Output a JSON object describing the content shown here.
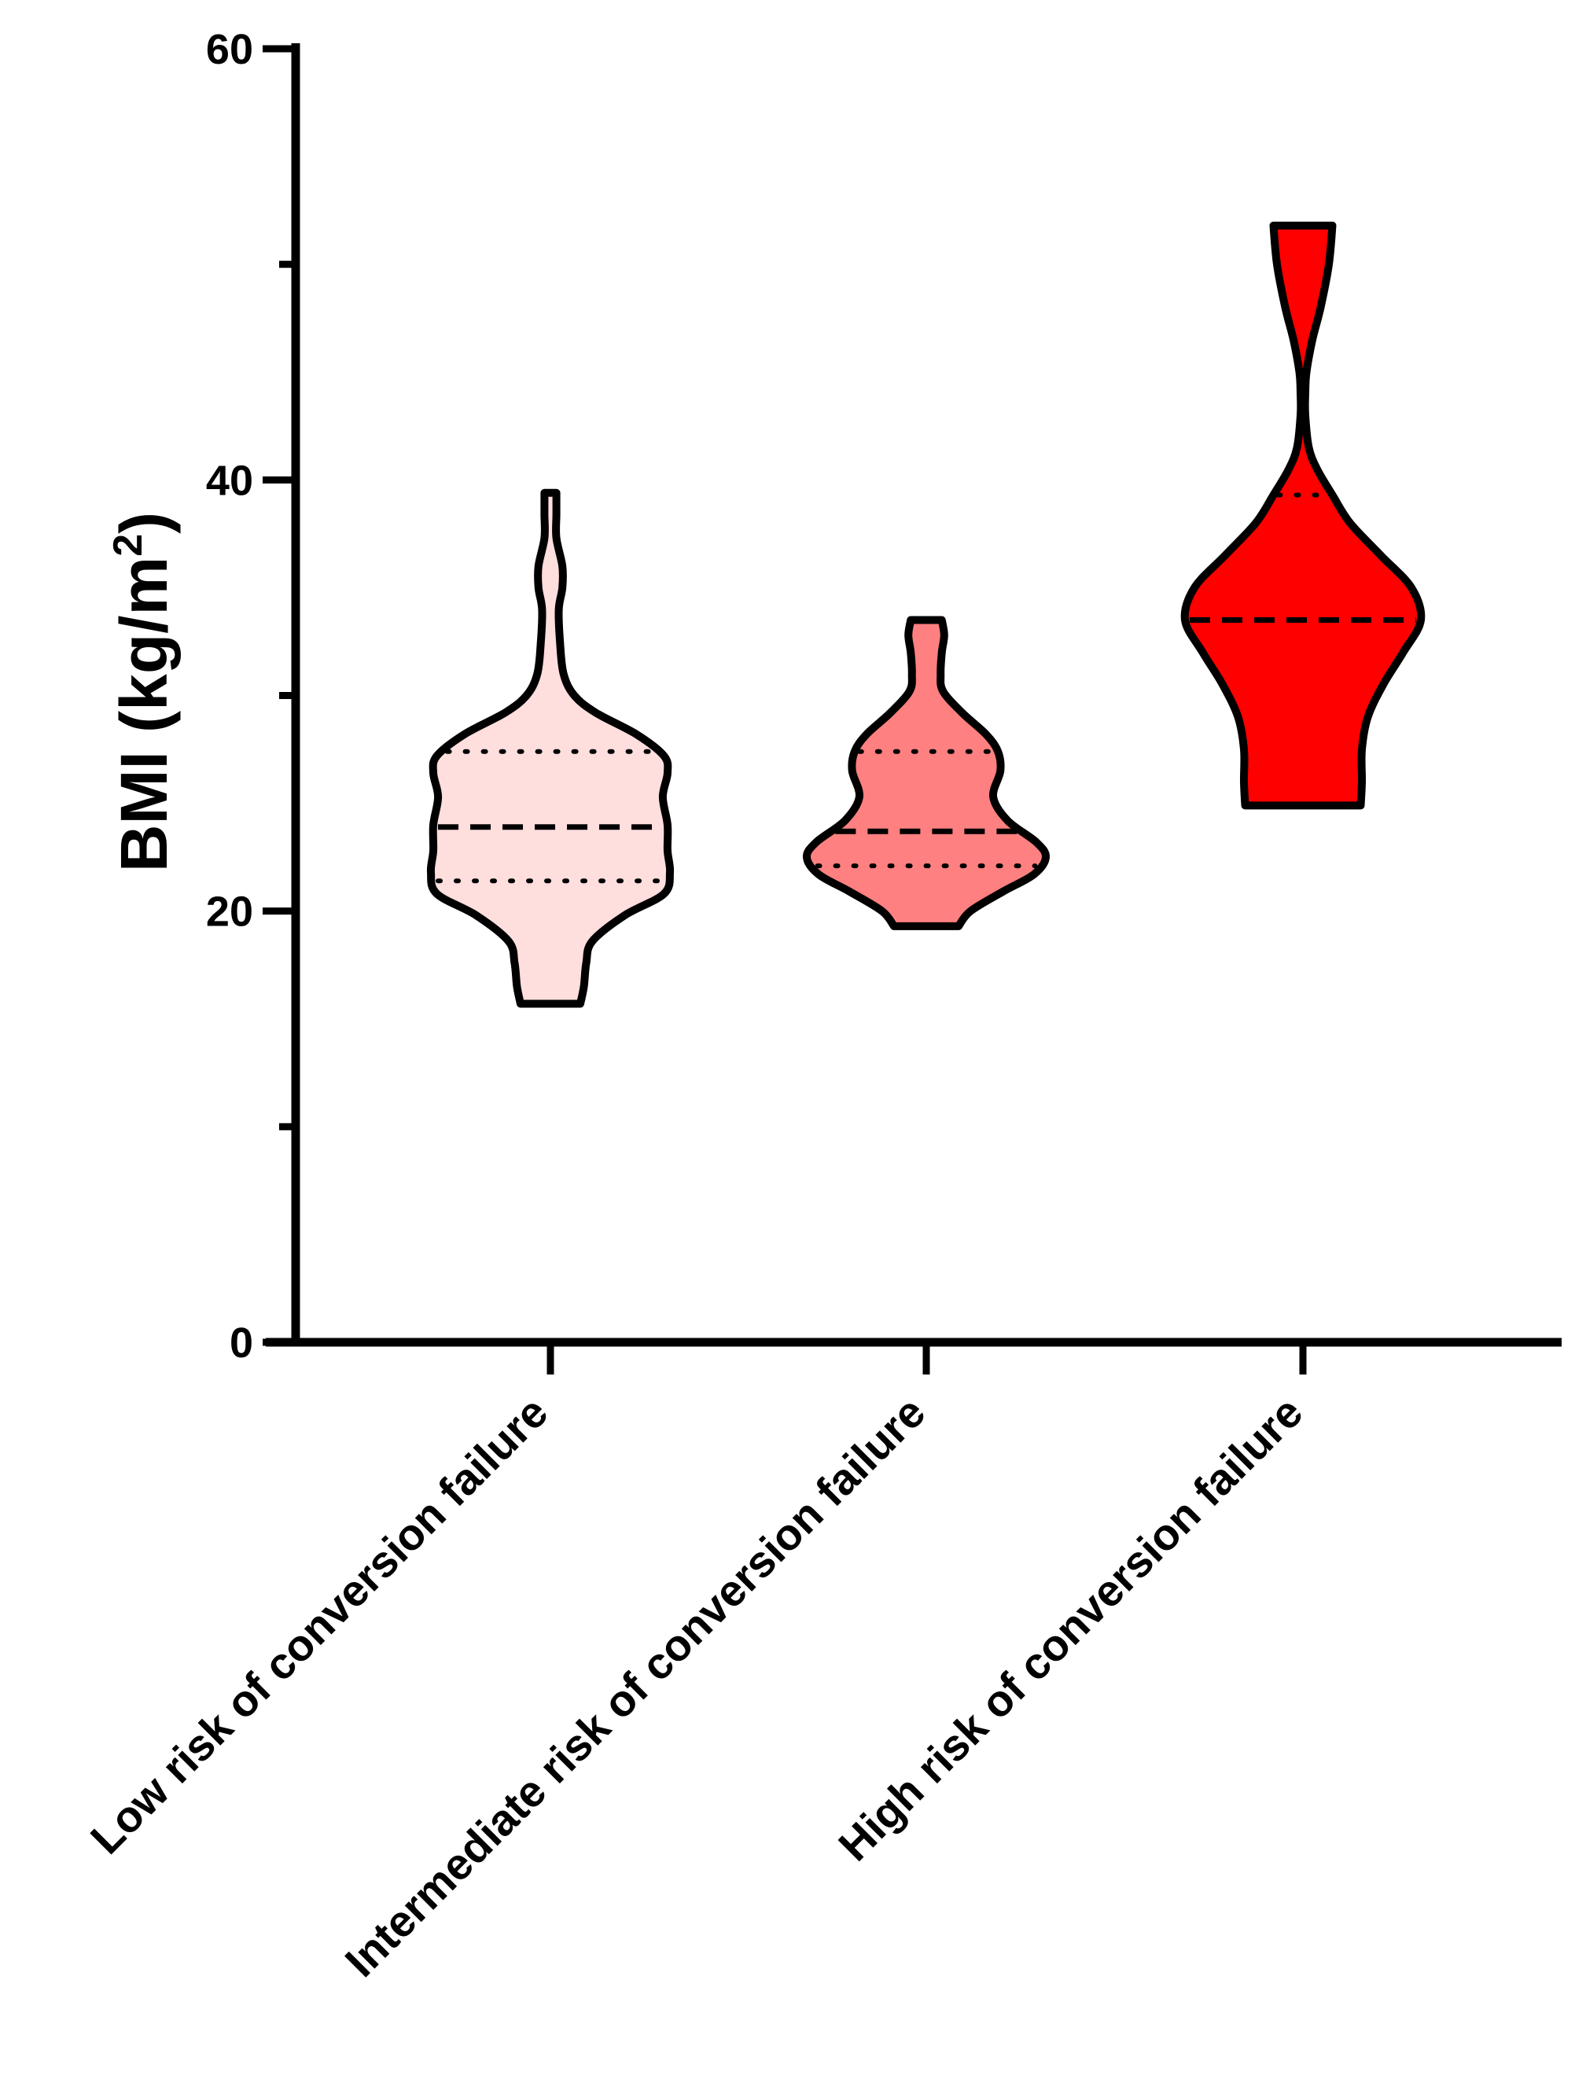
{
  "chart_data": {
    "type": "violin",
    "ylabel": "BMI (kg/m",
    "ylabel_sup": "2",
    "ylabel_close": ")",
    "ylim": [
      0,
      60
    ],
    "yticks_major": [
      0,
      20,
      40,
      60
    ],
    "yticks_minor": [
      10,
      30,
      50
    ],
    "categories": [
      "Low risk of conversion failure",
      "Intermediate risk of conversion failure",
      "High risk of conversion failure"
    ],
    "series": [
      {
        "color": "#ffdede",
        "min": 15.7,
        "max": 39.4,
        "median": 23.9,
        "q1": 21.4,
        "q3": 27.4,
        "density": [
          [
            15.7,
            0.25
          ],
          [
            16.5,
            0.28
          ],
          [
            17.6,
            0.3
          ],
          [
            18.6,
            0.35
          ],
          [
            19.8,
            0.62
          ],
          [
            20.8,
            0.95
          ],
          [
            21.8,
            1.0
          ],
          [
            22.8,
            0.98
          ],
          [
            24.0,
            0.98
          ],
          [
            25.3,
            0.94
          ],
          [
            26.4,
            0.98
          ],
          [
            27.2,
            0.95
          ],
          [
            28.2,
            0.72
          ],
          [
            29.2,
            0.38
          ],
          [
            30.0,
            0.2
          ],
          [
            31.0,
            0.11
          ],
          [
            32.5,
            0.08
          ],
          [
            34.0,
            0.07
          ],
          [
            35.0,
            0.1
          ],
          [
            36.0,
            0.1
          ],
          [
            37.3,
            0.05
          ],
          [
            38.4,
            0.05
          ],
          [
            39.4,
            0.05
          ]
        ]
      },
      {
        "color": "#ff8080",
        "min": 19.3,
        "max": 33.5,
        "median": 23.7,
        "q1": 22.1,
        "q3": 27.4,
        "density": [
          [
            19.3,
            0.27
          ],
          [
            20.0,
            0.37
          ],
          [
            20.9,
            0.64
          ],
          [
            21.7,
            0.9
          ],
          [
            22.5,
            1.0
          ],
          [
            23.2,
            0.92
          ],
          [
            24.2,
            0.68
          ],
          [
            25.3,
            0.56
          ],
          [
            26.5,
            0.62
          ],
          [
            27.4,
            0.6
          ],
          [
            28.2,
            0.5
          ],
          [
            29.2,
            0.3
          ],
          [
            30.2,
            0.14
          ],
          [
            31.0,
            0.12
          ],
          [
            32.0,
            0.13
          ],
          [
            32.8,
            0.15
          ],
          [
            33.5,
            0.13
          ]
        ]
      },
      {
        "color": "#ff0000",
        "min": 24.9,
        "max": 51.8,
        "median": 33.5,
        "q1": 33.5,
        "q3": 39.3,
        "density": [
          [
            24.9,
            0.49
          ],
          [
            26.0,
            0.5
          ],
          [
            27.5,
            0.5
          ],
          [
            29.0,
            0.55
          ],
          [
            30.5,
            0.68
          ],
          [
            32.0,
            0.85
          ],
          [
            33.5,
            1.0
          ],
          [
            35.0,
            0.92
          ],
          [
            36.5,
            0.66
          ],
          [
            38.0,
            0.4
          ],
          [
            39.3,
            0.25
          ],
          [
            40.5,
            0.12
          ],
          [
            41.5,
            0.05
          ],
          [
            43.0,
            0.02
          ],
          [
            44.0,
            0.02
          ],
          [
            45.0,
            0.03
          ],
          [
            46.5,
            0.08
          ],
          [
            48.0,
            0.15
          ],
          [
            50.0,
            0.22
          ],
          [
            51.8,
            0.25
          ]
        ]
      }
    ],
    "grid": false
  }
}
